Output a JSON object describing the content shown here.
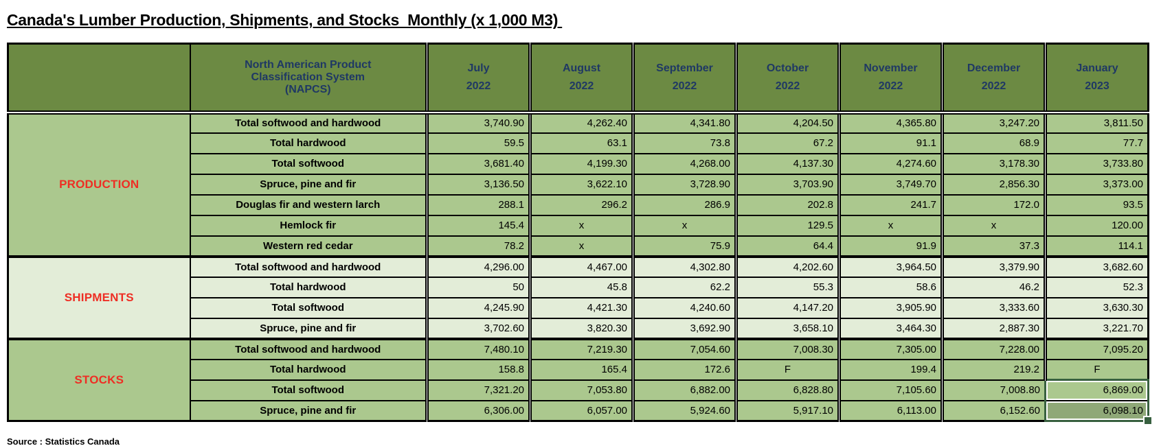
{
  "title": "Canada's Lumber Production, Shipments, and Stocks  Monthly (x 1,000 M3) ",
  "source": "Source : Statistics Canada",
  "colors": {
    "header_bg": "#6c8a43",
    "header_text": "#1f3864",
    "section_label_red": "#ee2e24",
    "row_green": "#abc88e",
    "row_pale": "#e3edd8",
    "selection_border": "#38603f",
    "selection_fill": "#8fa878",
    "grid_border": "#000000"
  },
  "table": {
    "napcs_header": "North American Product\nClassification System\n(NAPCS)",
    "months": [
      {
        "name": "July",
        "year": "2022"
      },
      {
        "name": "August",
        "year": "2022"
      },
      {
        "name": "September",
        "year": "2022"
      },
      {
        "name": "October",
        "year": "2022"
      },
      {
        "name": "November",
        "year": "2022"
      },
      {
        "name": "December",
        "year": "2022"
      },
      {
        "name": "January",
        "year": "2023"
      }
    ],
    "sections": [
      {
        "label": "PRODUCTION",
        "bg": "green",
        "rows": [
          {
            "label": "Total softwood and hardwood",
            "values": [
              "3,740.90",
              "4,262.40",
              "4,341.80",
              "4,204.50",
              "4,365.80",
              "3,247.20",
              "3,811.50"
            ]
          },
          {
            "label": "Total hardwood",
            "values": [
              "59.5",
              "63.1",
              "73.8",
              "67.2",
              "91.1",
              "68.9",
              "77.7"
            ]
          },
          {
            "label": "Total softwood",
            "values": [
              "3,681.40",
              "4,199.30",
              "4,268.00",
              "4,137.30",
              "4,274.60",
              "3,178.30",
              "3,733.80"
            ]
          },
          {
            "label": "Spruce, pine and fir",
            "values": [
              "3,136.50",
              "3,622.10",
              "3,728.90",
              "3,703.90",
              "3,749.70",
              "2,856.30",
              "3,373.00"
            ]
          },
          {
            "label": "Douglas fir and western larch",
            "values": [
              "288.1",
              "296.2",
              "286.9",
              "202.8",
              "241.7",
              "172.0",
              "93.5"
            ]
          },
          {
            "label": "Hemlock fir",
            "values": [
              "145.4",
              "x",
              "x",
              "129.5",
              "x",
              "x",
              "120.00"
            ]
          },
          {
            "label": "Western red cedar",
            "values": [
              "78.2",
              "x",
              "75.9",
              "64.4",
              "91.9",
              "37.3",
              "114.1"
            ]
          }
        ]
      },
      {
        "label": "SHIPMENTS",
        "bg": "pale",
        "rows": [
          {
            "label": "Total softwood and hardwood",
            "values": [
              "4,296.00",
              "4,467.00",
              "4,302.80",
              "4,202.60",
              "3,964.50",
              "3,379.90",
              "3,682.60"
            ]
          },
          {
            "label": "Total hardwood",
            "values": [
              "50",
              "45.8",
              "62.2",
              "55.3",
              "58.6",
              "46.2",
              "52.3"
            ]
          },
          {
            "label": "Total softwood",
            "values": [
              "4,245.90",
              "4,421.30",
              "4,240.60",
              "4,147.20",
              "3,905.90",
              "3,333.60",
              "3,630.30"
            ]
          },
          {
            "label": "Spruce, pine and fir",
            "values": [
              "3,702.60",
              "3,820.30",
              "3,692.90",
              "3,658.10",
              "3,464.30",
              "2,887.30",
              "3,221.70"
            ]
          }
        ]
      },
      {
        "label": "STOCKS",
        "bg": "green",
        "rows": [
          {
            "label": "Total softwood and hardwood",
            "values": [
              "7,480.10",
              "7,219.30",
              "7,054.60",
              "7,008.30",
              "7,305.00",
              "7,228.00",
              "7,095.20"
            ]
          },
          {
            "label": "Total hardwood",
            "values": [
              "158.8",
              "165.4",
              "172.6",
              "F",
              "199.4",
              "219.2",
              "F"
            ]
          },
          {
            "label": "Total softwood",
            "values": [
              "7,321.20",
              "7,053.80",
              "6,882.00",
              "6,828.80",
              "7,105.60",
              "7,008.80",
              "6,869.00"
            ]
          },
          {
            "label": "Spruce, pine and fir",
            "values": [
              "6,306.00",
              "6,057.00",
              "5,924.60",
              "5,917.10",
              "6,113.00",
              "6,152.60",
              "6,098.10"
            ]
          }
        ]
      }
    ],
    "selection": {
      "section_index": 2,
      "row_start": 2,
      "row_end": 3,
      "col_index": 6
    }
  }
}
